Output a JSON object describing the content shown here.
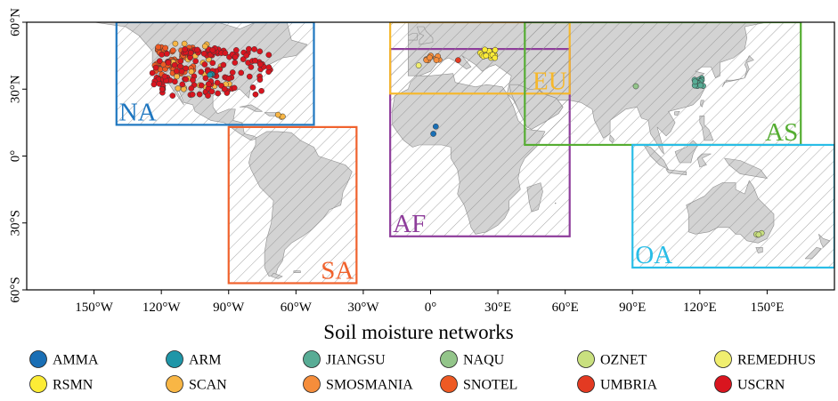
{
  "map": {
    "lat_labels": [
      {
        "lat": 60,
        "label": "60°N"
      },
      {
        "lat": 30,
        "label": "30°N"
      },
      {
        "lat": 0,
        "label": "0°"
      },
      {
        "lat": -30,
        "label": "30°S"
      },
      {
        "lat": -60,
        "label": "60°S"
      }
    ],
    "lon_labels": [
      {
        "lon": -150,
        "label": "150°W"
      },
      {
        "lon": -120,
        "label": "120°W"
      },
      {
        "lon": -90,
        "label": "90°W"
      },
      {
        "lon": -60,
        "label": "60°W"
      },
      {
        "lon": -30,
        "label": "30°W"
      },
      {
        "lon": 0,
        "label": "0°"
      },
      {
        "lon": 30,
        "label": "30°E"
      },
      {
        "lon": 60,
        "label": "60°E"
      },
      {
        "lon": 90,
        "label": "90°E"
      },
      {
        "lon": 120,
        "label": "120°E"
      },
      {
        "lon": 150,
        "label": "150°E"
      }
    ],
    "regions": [
      {
        "code": "NA",
        "color": "#1f77c0",
        "lon": [
          -140,
          -52
        ],
        "lat": [
          14,
          60
        ],
        "label_pos": "bottom-left"
      },
      {
        "code": "SA",
        "color": "#f0622d",
        "lon": [
          -90,
          -33
        ],
        "lat": [
          -57,
          13
        ],
        "label_pos": "bottom-right"
      },
      {
        "code": "AF",
        "color": "#8e3d9b",
        "lon": [
          -18,
          62
        ],
        "lat": [
          -36,
          48
        ],
        "label_pos": "bottom-left"
      },
      {
        "code": "EU",
        "color": "#f6b82c",
        "lon": [
          -18,
          62
        ],
        "lat": [
          28,
          60
        ],
        "label_pos": "bottom-right"
      },
      {
        "code": "AS",
        "color": "#55ad32",
        "lon": [
          42,
          165
        ],
        "lat": [
          5,
          60
        ],
        "label_pos": "bottom-right"
      },
      {
        "code": "OA",
        "color": "#29bde7",
        "lon": [
          90,
          180
        ],
        "lat": [
          -50,
          5
        ],
        "label_pos": "bottom-left"
      }
    ]
  },
  "legend": {
    "title": "Soil moisture networks",
    "items": [
      {
        "name": "AMMA",
        "color": "#1a6fb5"
      },
      {
        "name": "ARM",
        "color": "#1f96a8"
      },
      {
        "name": "JIANGSU",
        "color": "#58ac95"
      },
      {
        "name": "NAQU",
        "color": "#93c58a"
      },
      {
        "name": "OZNET",
        "color": "#c9e07f"
      },
      {
        "name": "REMEDHUS",
        "color": "#f0ee6f"
      },
      {
        "name": "RSMN",
        "color": "#fcec36"
      },
      {
        "name": "SCAN",
        "color": "#f8b645"
      },
      {
        "name": "SMOSMANIA",
        "color": "#f58d3b"
      },
      {
        "name": "SNOTEL",
        "color": "#ee5a24"
      },
      {
        "name": "UMBRIA",
        "color": "#e33a22"
      },
      {
        "name": "USCRN",
        "color": "#d9151f"
      }
    ]
  }
}
